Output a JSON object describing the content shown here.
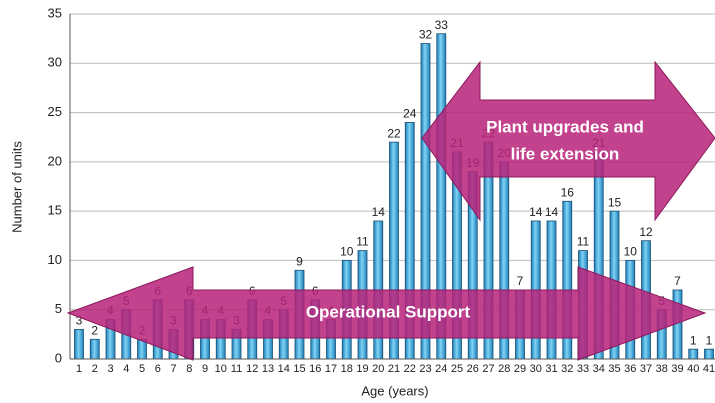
{
  "chart_data": {
    "type": "bar",
    "categories": [
      "1",
      "2",
      "3",
      "4",
      "5",
      "6",
      "7",
      "8",
      "9",
      "10",
      "11",
      "12",
      "13",
      "14",
      "15",
      "16",
      "17",
      "18",
      "19",
      "20",
      "21",
      "22",
      "23",
      "24",
      "25",
      "26",
      "27",
      "28",
      "29",
      "30",
      "31",
      "32",
      "33",
      "34",
      "35",
      "36",
      "37",
      "38",
      "39",
      "40",
      "41"
    ],
    "values": [
      3,
      2,
      4,
      5,
      2,
      6,
      3,
      6,
      4,
      4,
      3,
      6,
      4,
      5,
      9,
      6,
      4,
      10,
      11,
      14,
      22,
      24,
      32,
      33,
      21,
      19,
      22,
      20,
      7,
      14,
      14,
      16,
      11,
      21,
      15,
      10,
      12,
      5,
      7,
      1,
      1
    ],
    "color": "#35a9dc",
    "ylim": [
      0,
      35
    ],
    "yticks": [
      0,
      5,
      10,
      15,
      20,
      25,
      30,
      35
    ],
    "grid": true,
    "xlabel": "Age (years)",
    "ylabel": "Number of units",
    "annotations": [
      "Plant upgrades and",
      "life extension",
      "Operational Support"
    ]
  }
}
